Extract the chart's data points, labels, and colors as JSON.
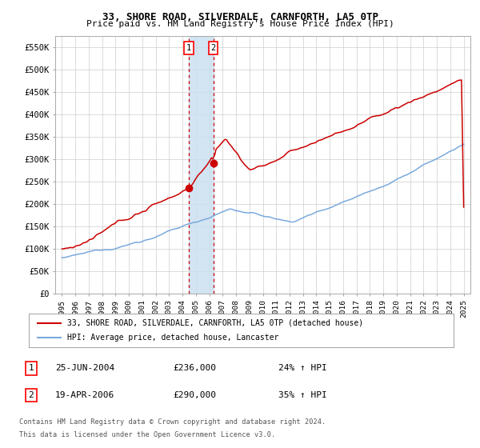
{
  "title": "33, SHORE ROAD, SILVERDALE, CARNFORTH, LA5 0TP",
  "subtitle": "Price paid vs. HM Land Registry's House Price Index (HPI)",
  "legend_line1": "33, SHORE ROAD, SILVERDALE, CARNFORTH, LA5 0TP (detached house)",
  "legend_line2": "HPI: Average price, detached house, Lancaster",
  "table_row1": [
    "1",
    "25-JUN-2004",
    "£236,000",
    "24% ↑ HPI"
  ],
  "table_row2": [
    "2",
    "19-APR-2006",
    "£290,000",
    "35% ↑ HPI"
  ],
  "footnote1": "Contains HM Land Registry data © Crown copyright and database right 2024.",
  "footnote2": "This data is licensed under the Open Government Licence v3.0.",
  "sale1_x": 2004.48,
  "sale1_y": 236000,
  "sale2_x": 2006.3,
  "sale2_y": 290000,
  "red_line_color": "#cc0000",
  "blue_line_color": "#7aaadd",
  "vspan_color": "#cce0f0",
  "vline_color": "#cc0000",
  "grid_color": "#cccccc",
  "bg_color": "#ffffff",
  "ylim": [
    0,
    575000
  ],
  "xlim_start": 1994.5,
  "xlim_end": 2025.5,
  "yticks": [
    0,
    50000,
    100000,
    150000,
    200000,
    250000,
    300000,
    350000,
    400000,
    450000,
    500000,
    550000
  ],
  "yticklabels": [
    "£0",
    "£50K",
    "£100K",
    "£150K",
    "£200K",
    "£250K",
    "£300K",
    "£350K",
    "£400K",
    "£450K",
    "£500K",
    "£550K"
  ]
}
